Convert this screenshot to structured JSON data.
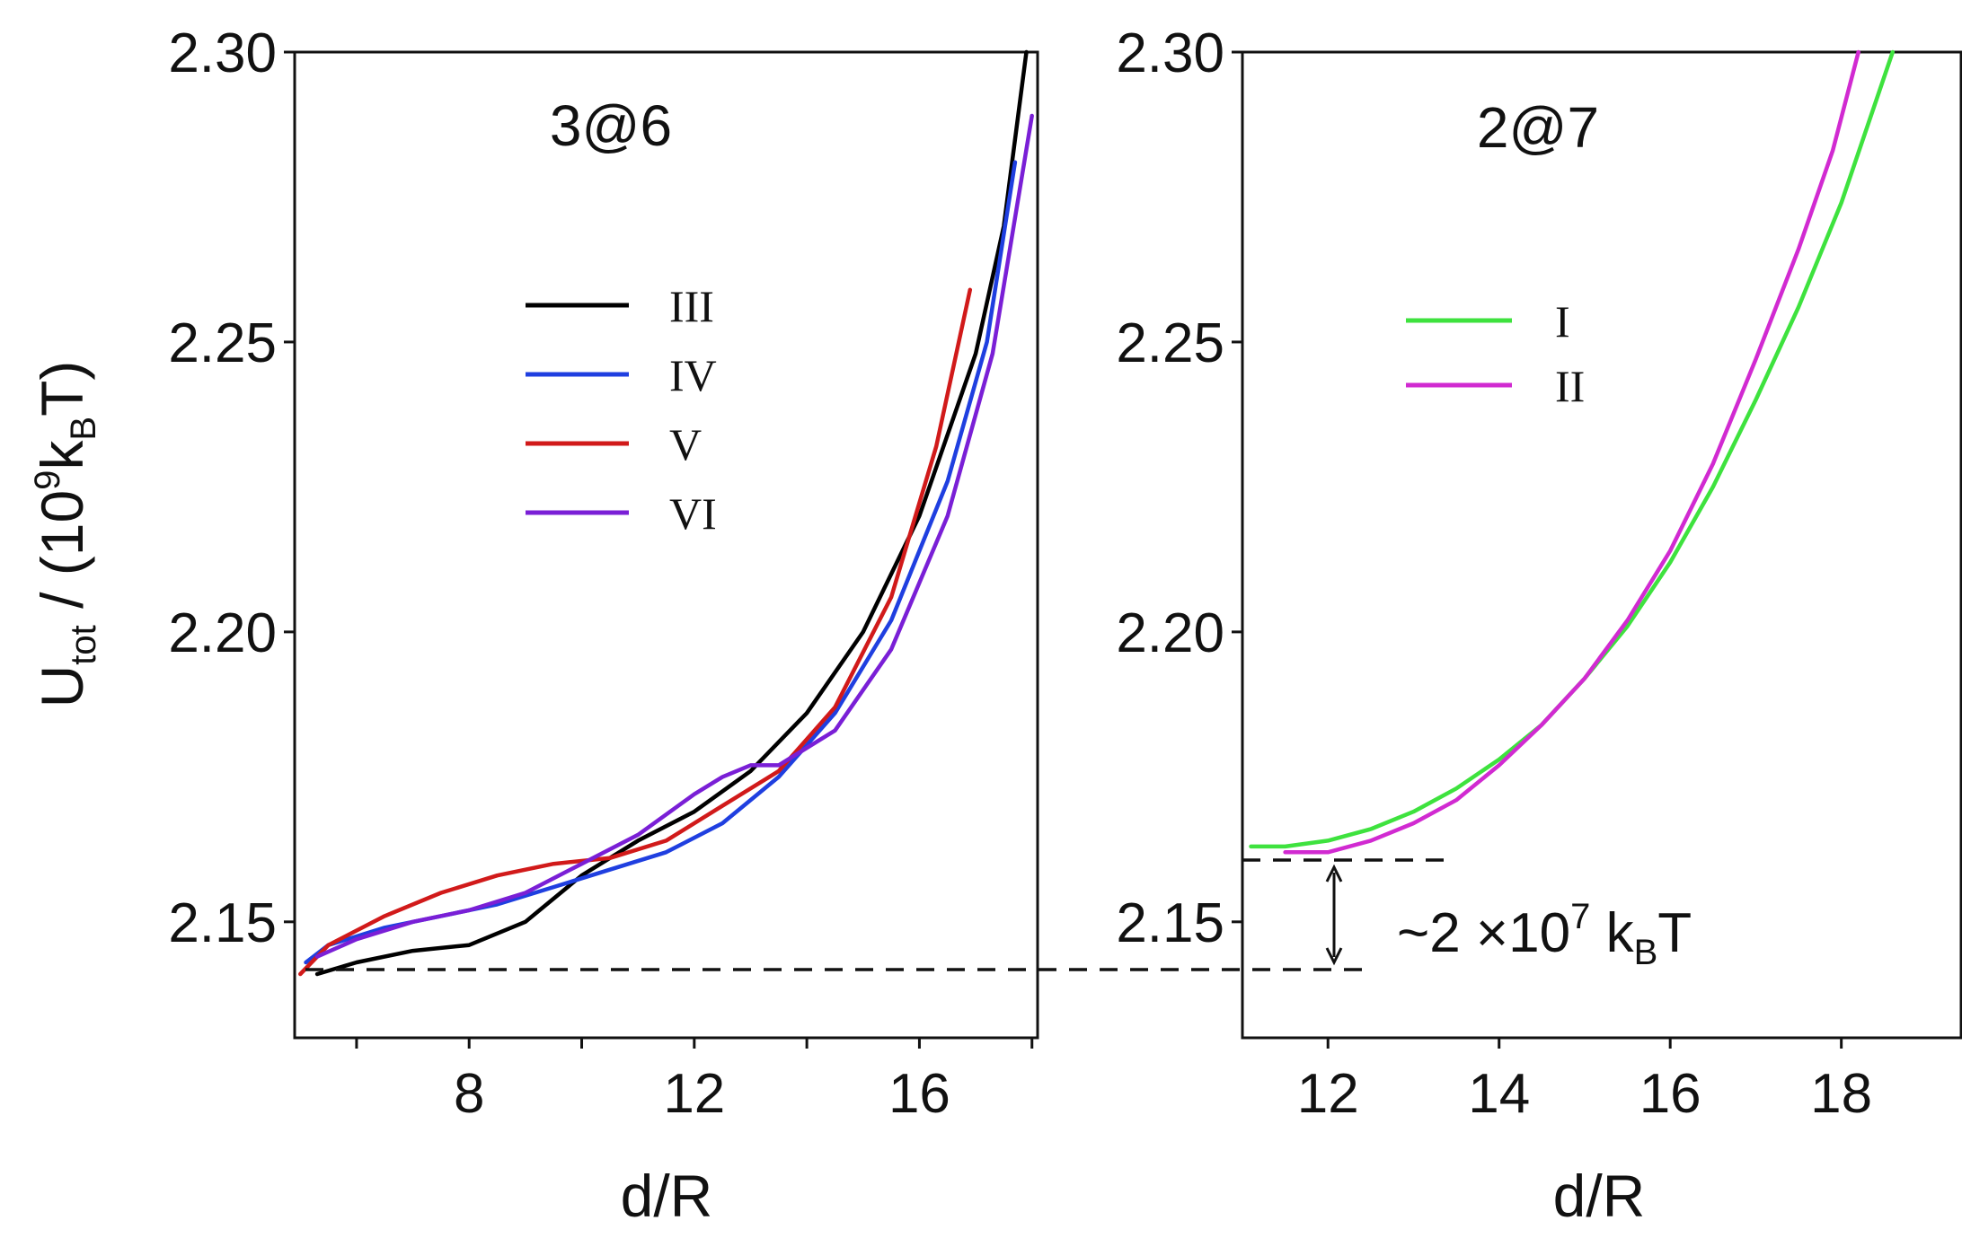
{
  "y_axis_label": {
    "main": "U",
    "sub": "tot",
    "mid": " / (10",
    "sup": "9",
    "k": "k",
    "ksub": "B",
    "end": "T)"
  },
  "annotation": {
    "prefix": "~2 ×10",
    "sup": "7",
    "k": " k",
    "sub": "B",
    "end": "T"
  },
  "chart_data": [
    {
      "type": "line",
      "title": "3@6",
      "xlabel": "d/R",
      "ylabel": "U_tot / (10^9 k_B T)",
      "xlim": [
        4.9,
        18.1
      ],
      "ylim": [
        2.13,
        2.3
      ],
      "xticks": [
        6,
        8,
        10,
        12,
        14,
        16,
        18
      ],
      "xtick_labels": [
        "8",
        "12",
        "16"
      ],
      "yticks": [
        2.15,
        2.2,
        2.25,
        2.3
      ],
      "ytick_labels": [
        "2.15",
        "2.20",
        "2.25",
        "2.30"
      ],
      "legend_position": "upper-middle",
      "series": [
        {
          "name": "III",
          "color": "#000000",
          "x": [
            5.3,
            6.0,
            7.0,
            8.0,
            9.0,
            10.0,
            11.0,
            12.0,
            13.0,
            14.0,
            15.0,
            16.0,
            17.0,
            17.5,
            17.9
          ],
          "y": [
            2.141,
            2.143,
            2.145,
            2.146,
            2.15,
            2.158,
            2.164,
            2.169,
            2.176,
            2.186,
            2.2,
            2.22,
            2.248,
            2.27,
            2.3
          ]
        },
        {
          "name": "IV",
          "color": "#1f3fe0",
          "x": [
            5.1,
            5.5,
            6.5,
            7.5,
            8.5,
            9.5,
            10.5,
            11.5,
            12.5,
            13.5,
            14.5,
            15.5,
            16.5,
            17.2,
            17.7
          ],
          "y": [
            2.143,
            2.146,
            2.149,
            2.151,
            2.153,
            2.156,
            2.159,
            2.162,
            2.167,
            2.175,
            2.186,
            2.202,
            2.226,
            2.25,
            2.281
          ]
        },
        {
          "name": "V",
          "color": "#d11a1a",
          "x": [
            5.0,
            5.5,
            6.5,
            7.5,
            8.5,
            9.5,
            10.5,
            11.5,
            12.5,
            13.5,
            14.5,
            15.5,
            16.3,
            16.9
          ],
          "y": [
            2.141,
            2.146,
            2.151,
            2.155,
            2.158,
            2.16,
            2.161,
            2.164,
            2.17,
            2.176,
            2.187,
            2.206,
            2.232,
            2.259
          ]
        },
        {
          "name": "VI",
          "color": "#7a1fd6",
          "x": [
            5.3,
            6.0,
            7.0,
            8.0,
            9.0,
            10.0,
            11.0,
            12.0,
            12.5,
            13.0,
            13.5,
            14.5,
            15.5,
            16.5,
            17.3,
            18.0
          ],
          "y": [
            2.144,
            2.147,
            2.15,
            2.152,
            2.155,
            2.16,
            2.165,
            2.172,
            2.175,
            2.177,
            2.177,
            2.183,
            2.197,
            2.22,
            2.248,
            2.289
          ]
        }
      ]
    },
    {
      "type": "line",
      "title": "2@7",
      "xlabel": "d/R",
      "ylabel": "",
      "xlim": [
        11.0,
        19.4
      ],
      "ylim": [
        2.13,
        2.3
      ],
      "xticks": [
        12,
        14,
        16,
        18
      ],
      "xtick_labels": [
        "12",
        "14",
        "16",
        "18"
      ],
      "yticks": [
        2.15,
        2.2,
        2.25,
        2.3
      ],
      "ytick_labels": [
        "2.15",
        "2.20",
        "2.25",
        "2.30"
      ],
      "legend_position": "upper-left",
      "series": [
        {
          "name": "I",
          "color": "#3ee23e",
          "x": [
            11.1,
            11.5,
            12.0,
            12.5,
            13.0,
            13.5,
            14.0,
            14.5,
            15.0,
            15.5,
            16.0,
            16.5,
            17.0,
            17.5,
            18.0,
            18.6
          ],
          "y": [
            2.163,
            2.163,
            2.164,
            2.166,
            2.169,
            2.173,
            2.178,
            2.184,
            2.192,
            2.201,
            2.212,
            2.225,
            2.24,
            2.256,
            2.274,
            2.3
          ]
        },
        {
          "name": "II",
          "color": "#d12ad1",
          "x": [
            11.5,
            12.0,
            12.5,
            13.0,
            13.5,
            14.0,
            14.5,
            15.0,
            15.5,
            16.0,
            16.5,
            17.0,
            17.5,
            17.9,
            18.2
          ],
          "y": [
            2.162,
            2.162,
            2.164,
            2.167,
            2.171,
            2.177,
            2.184,
            2.192,
            2.202,
            2.214,
            2.229,
            2.247,
            2.266,
            2.283,
            2.3
          ]
        }
      ]
    }
  ]
}
